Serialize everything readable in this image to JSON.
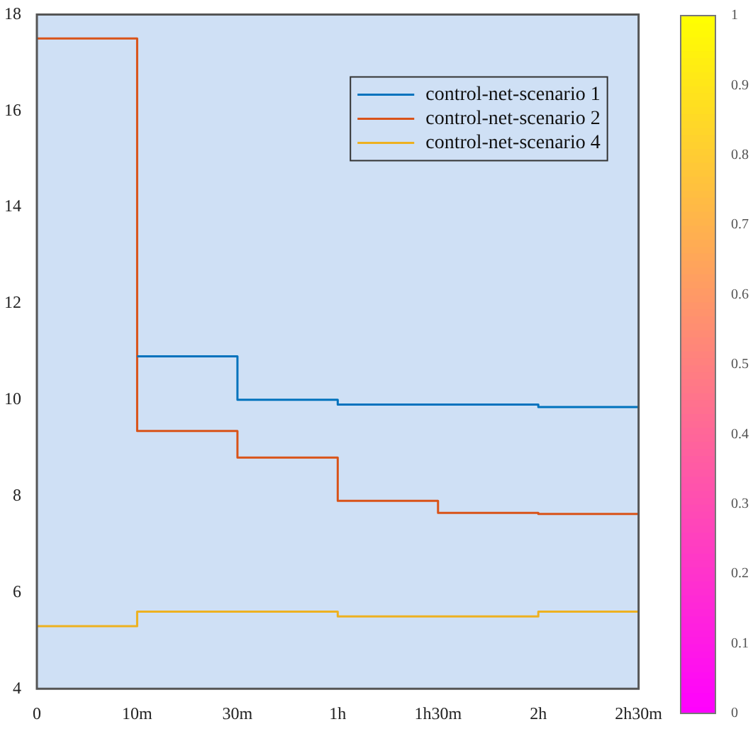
{
  "chart_data": {
    "type": "step",
    "categories": [
      "0",
      "10m",
      "30m",
      "1h",
      "1h30m",
      "2h",
      "2h30m"
    ],
    "ylim": [
      4,
      18
    ],
    "yticks": [
      4,
      6,
      8,
      10,
      12,
      14,
      16,
      18
    ],
    "grid": false,
    "legend": "top right",
    "clim": [
      0,
      1
    ],
    "cticks": [
      0,
      0.1,
      0.2,
      0.3,
      0.4,
      0.5,
      0.6,
      0.7,
      0.8,
      0.9,
      1
    ],
    "series": [
      {
        "name": "control-net-scenario 1",
        "color": "#0072bd",
        "values": [
          null,
          10.9,
          10.0,
          9.9,
          9.9,
          9.85,
          9.85
        ]
      },
      {
        "name": "control-net-scenario 2",
        "color": "#d95319",
        "values": [
          17.5,
          9.35,
          8.8,
          7.9,
          7.65,
          7.63,
          7.63
        ]
      },
      {
        "name": "control-net-scenario 4",
        "color": "#edb120",
        "values": [
          5.3,
          5.6,
          5.6,
          5.5,
          5.5,
          5.6,
          5.6
        ]
      }
    ]
  }
}
